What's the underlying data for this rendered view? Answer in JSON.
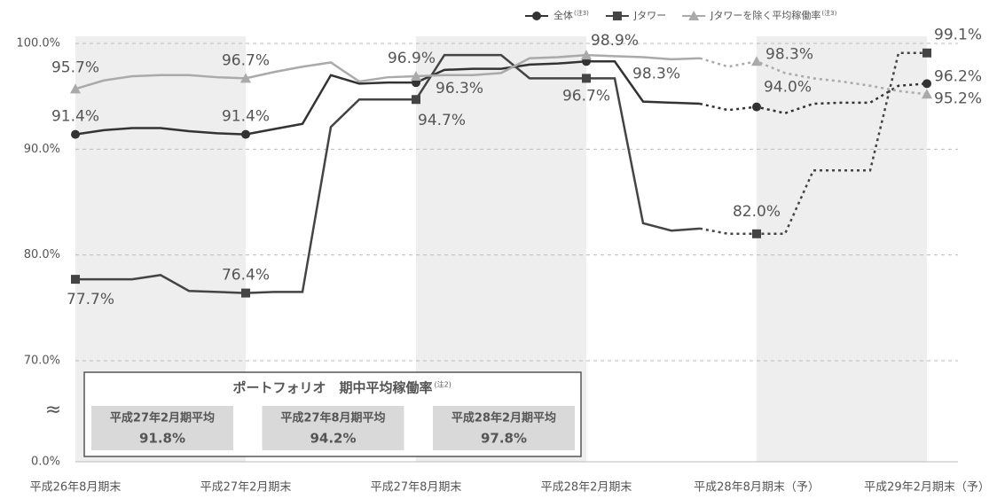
{
  "chart_data": {
    "type": "line",
    "categories": [
      "平成26年8月期末",
      null,
      null,
      null,
      null,
      null,
      "平成27年2月期末",
      null,
      null,
      null,
      null,
      null,
      "平成27年8月期末",
      null,
      null,
      null,
      null,
      null,
      "平成28年2月期末",
      null,
      null,
      null,
      null,
      null,
      "平成28年8月期末（予）",
      null,
      null,
      null,
      null,
      null,
      "平成29年2月期末（予）"
    ],
    "ylim": [
      70,
      100
    ],
    "yticks": [
      {
        "value": 0,
        "label": "0.0%"
      },
      {
        "value": 70,
        "label": "70.0%"
      },
      {
        "value": 80,
        "label": "80.0%"
      },
      {
        "value": 90,
        "label": "90.0%"
      },
      {
        "value": 100,
        "label": "100.0%"
      }
    ],
    "axis_break": "≈",
    "grid": true,
    "legend": "top-right",
    "series": [
      {
        "name": "全体",
        "note": "(注3)",
        "color": "#333333",
        "marker": "circle",
        "dashed_from": 22,
        "values": [
          91.4,
          91.8,
          92.0,
          92.0,
          91.7,
          91.5,
          91.4,
          91.9,
          92.4,
          97.0,
          96.2,
          96.3,
          96.3,
          97.5,
          97.6,
          97.6,
          98.0,
          98.1,
          98.3,
          98.3,
          94.5,
          94.4,
          94.3,
          93.7,
          94.0,
          93.4,
          94.3,
          94.4,
          94.4,
          96.0,
          96.2
        ],
        "value_labels": [
          "91.4%",
          null,
          null,
          null,
          null,
          null,
          "91.4%",
          null,
          null,
          null,
          null,
          null,
          "96.3%",
          null,
          null,
          null,
          null,
          null,
          "98.3%",
          null,
          null,
          null,
          null,
          null,
          "94.0%",
          null,
          null,
          null,
          null,
          null,
          "96.2%"
        ]
      },
      {
        "name": "Jタワー",
        "color": "#444444",
        "marker": "square",
        "dashed_from": 22,
        "values": [
          77.7,
          77.7,
          77.7,
          78.1,
          76.6,
          76.5,
          76.4,
          76.5,
          76.5,
          92.1,
          94.7,
          94.7,
          94.7,
          98.9,
          98.9,
          98.9,
          96.7,
          96.7,
          96.7,
          96.7,
          83.0,
          82.3,
          82.5,
          82.0,
          82.0,
          82.0,
          88.0,
          88.0,
          88.0,
          99.1,
          99.1
        ],
        "value_labels": [
          "77.7%",
          null,
          null,
          null,
          null,
          null,
          "76.4%",
          null,
          null,
          null,
          null,
          null,
          "94.7%",
          null,
          null,
          null,
          null,
          null,
          "96.7%",
          null,
          null,
          null,
          null,
          null,
          "82.0%",
          null,
          null,
          null,
          null,
          null,
          "99.1%"
        ]
      },
      {
        "name": "Jタワーを除く平均稼働率",
        "note": "(注3)",
        "color": "#aaaaaa",
        "marker": "triangle",
        "dashed_from": 22,
        "values": [
          95.7,
          96.5,
          96.9,
          97.0,
          97.0,
          96.8,
          96.7,
          97.3,
          97.8,
          98.2,
          96.4,
          96.8,
          96.9,
          97.0,
          97.0,
          97.2,
          98.6,
          98.7,
          98.9,
          98.8,
          98.7,
          98.5,
          98.6,
          97.8,
          98.3,
          97.2,
          96.7,
          96.4,
          96.0,
          95.5,
          95.2
        ],
        "value_labels": [
          "95.7%",
          null,
          null,
          null,
          null,
          null,
          "96.7%",
          null,
          null,
          null,
          null,
          null,
          "96.9%",
          null,
          null,
          null,
          null,
          null,
          "98.9%",
          null,
          null,
          null,
          null,
          null,
          "98.3%",
          null,
          null,
          null,
          null,
          null,
          "95.2%"
        ]
      }
    ]
  },
  "inset": {
    "title": "ポートフォリオ　期中平均稼働率",
    "note": "(注2)",
    "items": [
      {
        "label": "平成27年2月期平均",
        "value": "91.8%"
      },
      {
        "label": "平成27年8月期平均",
        "value": "94.2%"
      },
      {
        "label": "平成28年2月期平均",
        "value": "97.8%"
      }
    ]
  }
}
